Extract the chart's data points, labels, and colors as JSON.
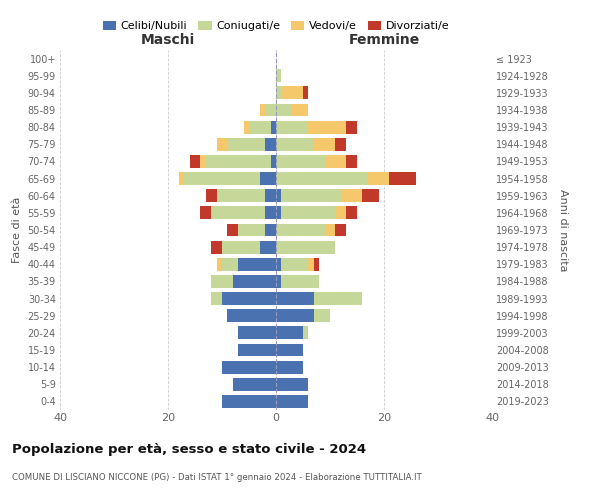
{
  "age_groups": [
    "0-4",
    "5-9",
    "10-14",
    "15-19",
    "20-24",
    "25-29",
    "30-34",
    "35-39",
    "40-44",
    "45-49",
    "50-54",
    "55-59",
    "60-64",
    "65-69",
    "70-74",
    "75-79",
    "80-84",
    "85-89",
    "90-94",
    "95-99",
    "100+"
  ],
  "birth_years": [
    "2019-2023",
    "2014-2018",
    "2009-2013",
    "2004-2008",
    "1999-2003",
    "1994-1998",
    "1989-1993",
    "1984-1988",
    "1979-1983",
    "1974-1978",
    "1969-1973",
    "1964-1968",
    "1959-1963",
    "1954-1958",
    "1949-1953",
    "1944-1948",
    "1939-1943",
    "1934-1938",
    "1929-1933",
    "1924-1928",
    "≤ 1923"
  ],
  "colors": {
    "celibe": "#4A72B0",
    "coniugato": "#C5D89A",
    "vedovo": "#F5C96B",
    "divorziato": "#C0392B"
  },
  "maschi": {
    "celibe": [
      10,
      8,
      10,
      7,
      7,
      9,
      10,
      8,
      7,
      3,
      2,
      2,
      2,
      3,
      1,
      2,
      1,
      0,
      0,
      0,
      0
    ],
    "coniugato": [
      0,
      0,
      0,
      0,
      0,
      0,
      2,
      4,
      3,
      7,
      5,
      10,
      9,
      14,
      12,
      7,
      4,
      2,
      0,
      0,
      0
    ],
    "vedovo": [
      0,
      0,
      0,
      0,
      0,
      0,
      0,
      0,
      1,
      0,
      0,
      0,
      0,
      1,
      1,
      2,
      1,
      1,
      0,
      0,
      0
    ],
    "divorziato": [
      0,
      0,
      0,
      0,
      0,
      0,
      0,
      0,
      0,
      2,
      2,
      2,
      2,
      0,
      2,
      0,
      0,
      0,
      0,
      0,
      0
    ]
  },
  "femmine": {
    "nubile": [
      6,
      6,
      5,
      5,
      5,
      7,
      7,
      1,
      1,
      0,
      0,
      1,
      1,
      0,
      0,
      0,
      0,
      0,
      0,
      0,
      0
    ],
    "coniugata": [
      0,
      0,
      0,
      0,
      1,
      3,
      9,
      7,
      5,
      11,
      9,
      10,
      11,
      17,
      9,
      7,
      6,
      3,
      1,
      1,
      0
    ],
    "vedova": [
      0,
      0,
      0,
      0,
      0,
      0,
      0,
      0,
      1,
      0,
      2,
      2,
      4,
      4,
      4,
      4,
      7,
      3,
      4,
      0,
      0
    ],
    "divorziata": [
      0,
      0,
      0,
      0,
      0,
      0,
      0,
      0,
      1,
      0,
      2,
      2,
      3,
      5,
      2,
      2,
      2,
      0,
      1,
      0,
      0
    ]
  },
  "title": "Popolazione per età, sesso e stato civile - 2024",
  "subtitle": "COMUNE DI LISCIANO NICCONE (PG) - Dati ISTAT 1° gennaio 2024 - Elaborazione TUTTITALIA.IT",
  "xlabel_left": "Maschi",
  "xlabel_right": "Femmine",
  "ylabel_left": "Fasce di età",
  "ylabel_right": "Anni di nascita",
  "xlim": 40,
  "legend_labels": [
    "Celibi/Nubili",
    "Coniugati/e",
    "Vedovi/e",
    "Divorziati/e"
  ],
  "bg_color": "#FFFFFF",
  "bar_height": 0.75,
  "grid_color": "#CCCCCC"
}
